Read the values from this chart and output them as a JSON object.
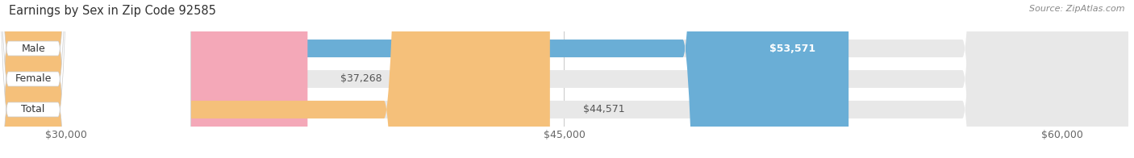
{
  "title": "Earnings by Sex in Zip Code 92585",
  "source": "Source: ZipAtlas.com",
  "categories": [
    "Male",
    "Female",
    "Total"
  ],
  "values": [
    53571,
    37268,
    44571
  ],
  "bar_colors": [
    "#6aaed6",
    "#f4a8b8",
    "#f5c07a"
  ],
  "track_color": "#e8e8e8",
  "value_labels": [
    "$53,571",
    "$37,268",
    "$44,571"
  ],
  "value_label_inside": [
    true,
    false,
    false
  ],
  "xmin": 28000,
  "xmax": 62000,
  "xticks": [
    30000,
    45000,
    60000
  ],
  "xtick_labels": [
    "$30,000",
    "$45,000",
    "$60,000"
  ],
  "background_color": "#ffffff",
  "title_fontsize": 10.5,
  "bar_height": 0.58,
  "figsize": [
    14.06,
    1.96
  ],
  "dpi": 100
}
